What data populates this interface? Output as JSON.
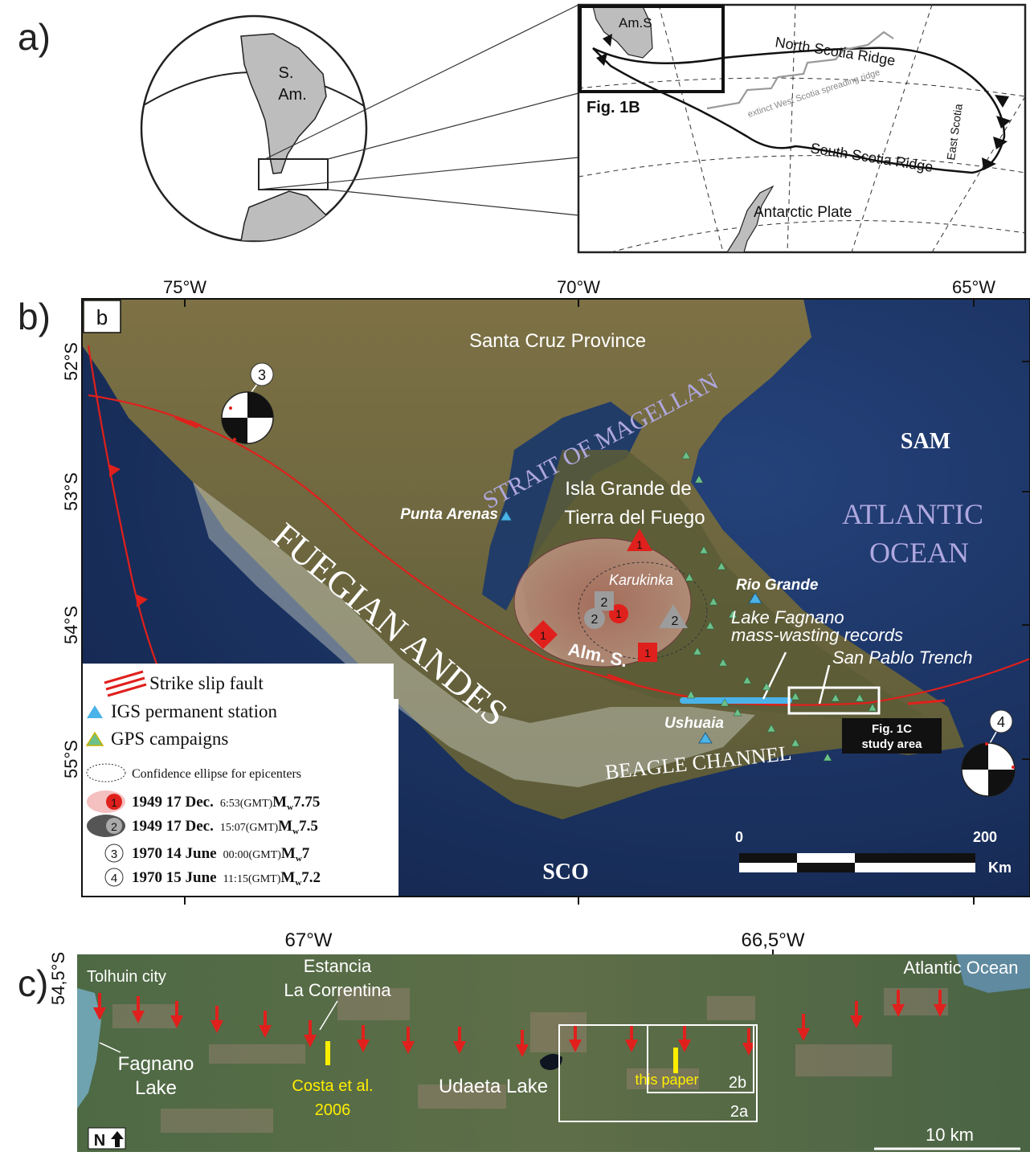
{
  "panel_a": {
    "letter": "a)",
    "globe_labels": {
      "s": "S.",
      "am": "Am."
    },
    "inset_labels": {
      "am_s": "Am.S",
      "north_scotia_ridge": "North Scotia Ridge",
      "south_scotia_ridge": "South Scotia Ridge",
      "east_scotia": "East Scotia",
      "extinct_ridge": "extinct West Scotia spreading ridge",
      "fig_1b": "Fig. 1B",
      "antarctic_plate": "Antarctic Plate"
    }
  },
  "panel_b": {
    "letter": "b)",
    "box_label": "b",
    "longitudes": [
      "75°W",
      "70°W",
      "65°W"
    ],
    "latitudes": [
      "52°S",
      "53°S",
      "54°S",
      "55°S"
    ],
    "places": {
      "santa_cruz": "Santa Cruz Province",
      "strait": "STRAIT OF MAGELLAN",
      "sam": "SAM",
      "atlantic_1": "ATLANTIC",
      "atlantic_2": "OCEAN",
      "isla_1": "Isla Grande de",
      "isla_2": "Tierra del Fuego",
      "punta_arenas": "Punta Arenas",
      "karukinka": "Karukinka",
      "rio_grande": "Rio Grande",
      "fagnano_1": "Lake Fagnano",
      "fagnano_2": "mass-wasting records",
      "san_pablo": "San Pablo Trench",
      "alm_s": "Alm. S.",
      "fuegian_andes": "FUEGIAN ANDES",
      "ushuaia": "Ushuaia",
      "beagle": "BEAGLE CHANNEL",
      "fig1c_1": "Fig. 1C",
      "fig1c_2": "study area",
      "sco": "SCO"
    },
    "mech_numbers": [
      "3",
      "4"
    ],
    "epicenter_numbers": [
      "1",
      "2"
    ],
    "scale": {
      "zero": "0",
      "max": "200",
      "unit": "Km"
    },
    "legend": {
      "strike_slip": "Strike slip fault",
      "igs": "IGS permanent station",
      "gps": "GPS campaigns",
      "ellipse": "Confidence ellipse for epicenters",
      "items": [
        {
          "num": "1",
          "date": "1949 17 Dec.",
          "time": "6:53(GMT)",
          "mag": "7.75"
        },
        {
          "num": "2",
          "date": "1949 17 Dec.",
          "time": "15:07(GMT)",
          "mag": "7.5"
        },
        {
          "num": "3",
          "date": "1970 14 June",
          "time": "00:00(GMT)",
          "mag": "7"
        },
        {
          "num": "4",
          "date": "1970 15 June",
          "time": "11:15(GMT)",
          "mag": "7.2"
        }
      ]
    }
  },
  "panel_c": {
    "letter": "c)",
    "lat": "54,5°S",
    "longitudes": [
      "67°W",
      "66,5°W"
    ],
    "labels": {
      "tolhuin": "Tolhuin city",
      "estancia_1": "Estancia",
      "estancia_2": "La Correntina",
      "atlantic": "Atlantic Ocean",
      "fagnano_1": "Fagnano",
      "fagnano_2": "Lake",
      "costa_1": "Costa et al.",
      "costa_2": "2006",
      "udaeta": "Udaeta Lake",
      "this_paper": "this paper",
      "box_2b": "2b",
      "box_2a": "2a",
      "scale": "10 km",
      "north": "N"
    }
  },
  "colors": {
    "fault": "#e0201c",
    "igs": "#4ab3e8",
    "gps": "#6cc08a",
    "ocean": "#1e3766",
    "land": "#6b6640",
    "yellow": "#ffee00"
  }
}
